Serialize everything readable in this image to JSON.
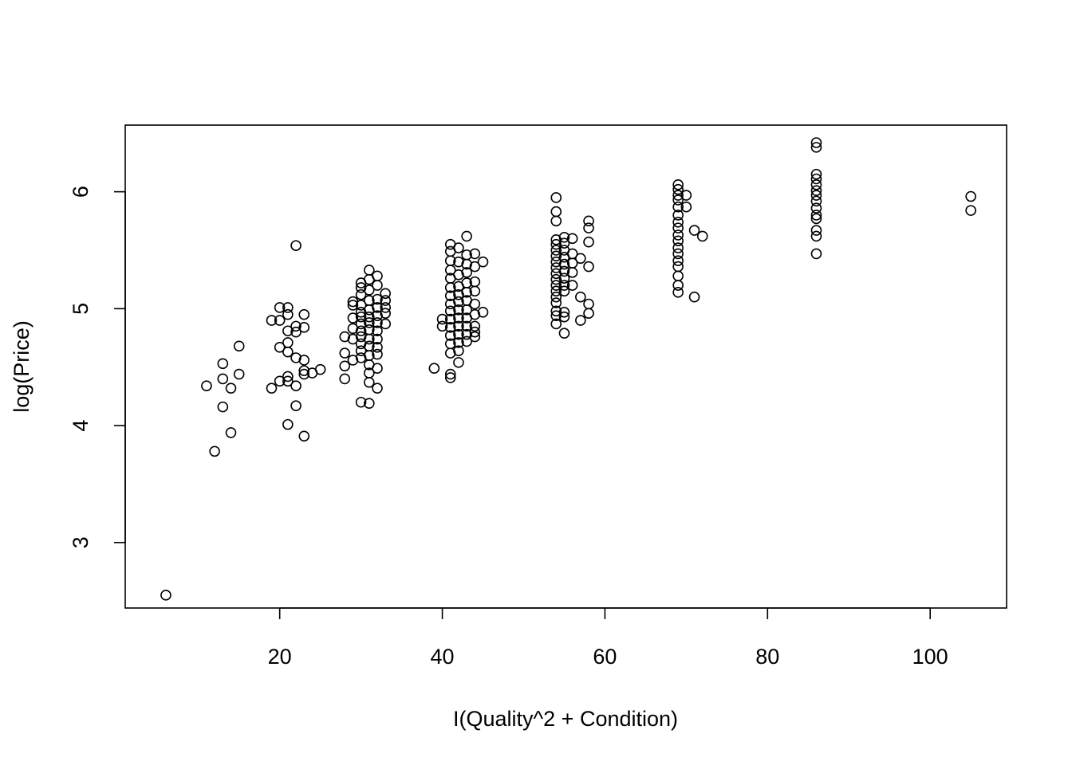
{
  "chart_data": {
    "type": "scatter",
    "title": "",
    "xlabel": "I(Quality^2 + Condition)",
    "ylabel": "log(Price)",
    "xlim": [
      1.0,
      109.4
    ],
    "ylim": [
      2.44,
      6.57
    ],
    "x_ticks": [
      20,
      40,
      60,
      80,
      100
    ],
    "y_ticks": [
      3,
      4,
      5,
      6
    ],
    "x_tick_labels": [
      "20",
      "40",
      "60",
      "80",
      "100"
    ],
    "y_tick_labels": [
      "3",
      "4",
      "5",
      "6"
    ],
    "grid": false,
    "legend": "none",
    "points": [
      [
        6,
        2.55
      ],
      [
        11,
        4.34
      ],
      [
        12,
        3.78
      ],
      [
        13,
        4.53
      ],
      [
        13,
        4.4
      ],
      [
        13,
        4.16
      ],
      [
        14,
        4.32
      ],
      [
        14,
        3.94
      ],
      [
        15,
        4.68
      ],
      [
        15,
        4.44
      ],
      [
        19,
        4.9
      ],
      [
        19,
        4.32
      ],
      [
        20,
        5.01
      ],
      [
        20,
        4.9
      ],
      [
        20,
        4.67
      ],
      [
        20,
        4.38
      ],
      [
        21,
        5.01
      ],
      [
        21,
        4.95
      ],
      [
        21,
        4.81
      ],
      [
        21,
        4.71
      ],
      [
        21,
        4.63
      ],
      [
        21,
        4.42
      ],
      [
        21,
        4.38
      ],
      [
        21,
        4.01
      ],
      [
        22,
        5.54
      ],
      [
        22,
        4.85
      ],
      [
        22,
        4.8
      ],
      [
        22,
        4.58
      ],
      [
        22,
        4.34
      ],
      [
        22,
        4.17
      ],
      [
        23,
        4.95
      ],
      [
        23,
        4.84
      ],
      [
        23,
        4.56
      ],
      [
        23,
        4.47
      ],
      [
        23,
        4.44
      ],
      [
        23,
        3.91
      ],
      [
        24,
        4.45
      ],
      [
        25,
        4.48
      ],
      [
        28,
        4.76
      ],
      [
        28,
        4.62
      ],
      [
        28,
        4.51
      ],
      [
        28,
        4.4
      ],
      [
        29,
        5.06
      ],
      [
        29,
        5.03
      ],
      [
        29,
        4.92
      ],
      [
        29,
        4.83
      ],
      [
        29,
        4.74
      ],
      [
        29,
        4.56
      ],
      [
        30,
        5.22
      ],
      [
        30,
        5.18
      ],
      [
        30,
        5.12
      ],
      [
        30,
        5.03
      ],
      [
        30,
        4.97
      ],
      [
        30,
        4.93
      ],
      [
        30,
        4.87
      ],
      [
        30,
        4.81
      ],
      [
        30,
        4.76
      ],
      [
        30,
        4.7
      ],
      [
        30,
        4.64
      ],
      [
        30,
        4.58
      ],
      [
        30,
        4.2
      ],
      [
        31,
        5.33
      ],
      [
        31,
        5.25
      ],
      [
        31,
        5.16
      ],
      [
        31,
        5.07
      ],
      [
        31,
        4.99
      ],
      [
        31,
        4.93
      ],
      [
        31,
        4.88
      ],
      [
        31,
        4.82
      ],
      [
        31,
        4.74
      ],
      [
        31,
        4.68
      ],
      [
        31,
        4.6
      ],
      [
        31,
        4.52
      ],
      [
        31,
        4.45
      ],
      [
        31,
        4.37
      ],
      [
        31,
        4.19
      ],
      [
        32,
        5.28
      ],
      [
        32,
        5.2
      ],
      [
        32,
        5.08
      ],
      [
        32,
        5.01
      ],
      [
        32,
        4.94
      ],
      [
        32,
        4.88
      ],
      [
        32,
        4.81
      ],
      [
        32,
        4.74
      ],
      [
        32,
        4.67
      ],
      [
        32,
        4.61
      ],
      [
        32,
        4.49
      ],
      [
        32,
        4.32
      ],
      [
        33,
        5.13
      ],
      [
        33,
        5.07
      ],
      [
        33,
        5.01
      ],
      [
        33,
        4.96
      ],
      [
        33,
        4.87
      ],
      [
        39,
        4.49
      ],
      [
        40,
        4.91
      ],
      [
        40,
        4.85
      ],
      [
        41,
        5.55
      ],
      [
        41,
        5.49
      ],
      [
        41,
        5.41
      ],
      [
        41,
        5.33
      ],
      [
        41,
        5.26
      ],
      [
        41,
        5.18
      ],
      [
        41,
        5.11
      ],
      [
        41,
        5.04
      ],
      [
        41,
        4.98
      ],
      [
        41,
        4.91
      ],
      [
        41,
        4.84
      ],
      [
        41,
        4.77
      ],
      [
        41,
        4.7
      ],
      [
        41,
        4.62
      ],
      [
        41,
        4.44
      ],
      [
        41,
        4.41
      ],
      [
        42,
        5.52
      ],
      [
        42,
        5.4
      ],
      [
        42,
        5.29
      ],
      [
        42,
        5.19
      ],
      [
        42,
        5.12
      ],
      [
        42,
        5.06
      ],
      [
        42,
        4.99
      ],
      [
        42,
        4.92
      ],
      [
        42,
        4.85
      ],
      [
        42,
        4.78
      ],
      [
        42,
        4.71
      ],
      [
        42,
        4.64
      ],
      [
        42,
        4.54
      ],
      [
        43,
        5.62
      ],
      [
        43,
        5.46
      ],
      [
        43,
        5.38
      ],
      [
        43,
        5.31
      ],
      [
        43,
        5.22
      ],
      [
        43,
        5.14
      ],
      [
        43,
        5.07
      ],
      [
        43,
        4.99
      ],
      [
        43,
        4.92
      ],
      [
        43,
        4.85
      ],
      [
        43,
        4.78
      ],
      [
        43,
        4.72
      ],
      [
        44,
        5.47
      ],
      [
        44,
        5.36
      ],
      [
        44,
        5.23
      ],
      [
        44,
        5.15
      ],
      [
        44,
        5.04
      ],
      [
        44,
        4.95
      ],
      [
        44,
        4.85
      ],
      [
        44,
        4.8
      ],
      [
        44,
        4.76
      ],
      [
        45,
        5.4
      ],
      [
        45,
        4.97
      ],
      [
        54,
        5.95
      ],
      [
        54,
        5.83
      ],
      [
        54,
        5.75
      ],
      [
        54,
        5.59
      ],
      [
        54,
        5.55
      ],
      [
        54,
        5.5
      ],
      [
        54,
        5.45
      ],
      [
        54,
        5.4
      ],
      [
        54,
        5.35
      ],
      [
        54,
        5.3
      ],
      [
        54,
        5.25
      ],
      [
        54,
        5.2
      ],
      [
        54,
        5.15
      ],
      [
        54,
        5.1
      ],
      [
        54,
        5.05
      ],
      [
        54,
        4.98
      ],
      [
        54,
        4.94
      ],
      [
        54,
        4.87
      ],
      [
        55,
        5.61
      ],
      [
        55,
        5.56
      ],
      [
        55,
        5.5
      ],
      [
        55,
        5.44
      ],
      [
        55,
        5.38
      ],
      [
        55,
        5.32
      ],
      [
        55,
        5.26
      ],
      [
        55,
        5.2
      ],
      [
        55,
        5.15
      ],
      [
        55,
        4.97
      ],
      [
        55,
        4.93
      ],
      [
        55,
        4.79
      ],
      [
        56,
        5.6
      ],
      [
        56,
        5.47
      ],
      [
        56,
        5.39
      ],
      [
        56,
        5.31
      ],
      [
        56,
        5.2
      ],
      [
        57,
        5.43
      ],
      [
        57,
        5.1
      ],
      [
        57,
        4.9
      ],
      [
        58,
        5.75
      ],
      [
        58,
        5.69
      ],
      [
        58,
        5.57
      ],
      [
        58,
        5.36
      ],
      [
        58,
        5.04
      ],
      [
        58,
        4.96
      ],
      [
        69,
        6.06
      ],
      [
        69,
        6.02
      ],
      [
        69,
        5.97
      ],
      [
        69,
        5.93
      ],
      [
        69,
        5.87
      ],
      [
        69,
        5.8
      ],
      [
        69,
        5.74
      ],
      [
        69,
        5.69
      ],
      [
        69,
        5.63
      ],
      [
        69,
        5.58
      ],
      [
        69,
        5.52
      ],
      [
        69,
        5.47
      ],
      [
        69,
        5.41
      ],
      [
        69,
        5.36
      ],
      [
        69,
        5.28
      ],
      [
        69,
        5.2
      ],
      [
        69,
        5.14
      ],
      [
        70,
        5.97
      ],
      [
        70,
        5.87
      ],
      [
        71,
        5.67
      ],
      [
        71,
        5.1
      ],
      [
        72,
        5.62
      ],
      [
        86,
        6.42
      ],
      [
        86,
        6.38
      ],
      [
        86,
        6.15
      ],
      [
        86,
        6.11
      ],
      [
        86,
        6.06
      ],
      [
        86,
        6.01
      ],
      [
        86,
        5.97
      ],
      [
        86,
        5.92
      ],
      [
        86,
        5.86
      ],
      [
        86,
        5.8
      ],
      [
        86,
        5.77
      ],
      [
        86,
        5.67
      ],
      [
        86,
        5.62
      ],
      [
        86,
        5.47
      ],
      [
        105,
        5.96
      ],
      [
        105,
        5.84
      ]
    ]
  }
}
